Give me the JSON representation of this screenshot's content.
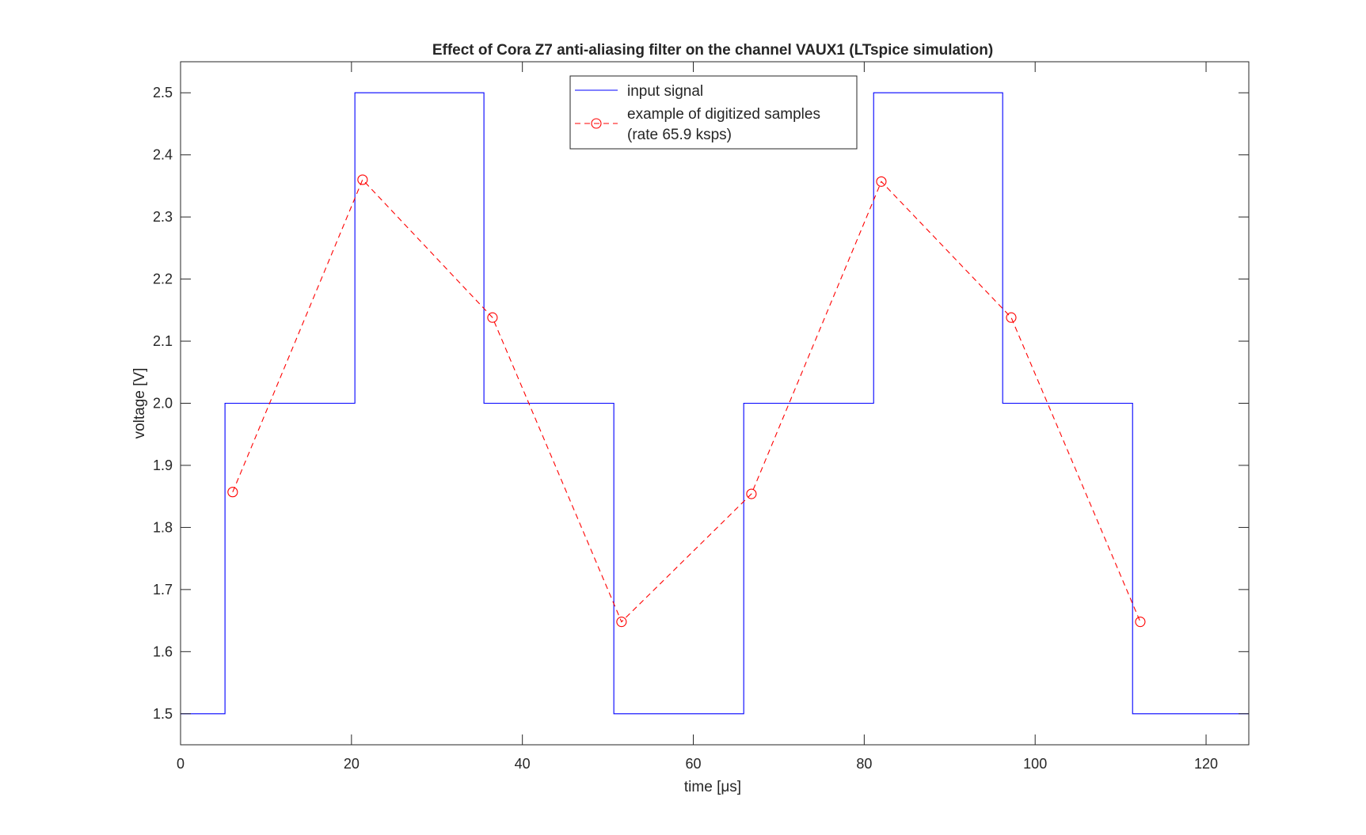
{
  "chart_data": {
    "type": "line",
    "title": "Effect of Cora Z7 anti-aliasing filter on the channel VAUX1 (LTspice simulation)",
    "xlabel": "time [μs]",
    "ylabel": "voltage [V]",
    "xlim": [
      0,
      125
    ],
    "ylim": [
      1.45,
      2.55
    ],
    "xticks": [
      0,
      20,
      40,
      60,
      80,
      100,
      120
    ],
    "xtick_labels": [
      "0",
      "20",
      "40",
      "60",
      "80",
      "100",
      "120"
    ],
    "yticks": [
      1.5,
      1.6,
      1.7,
      1.8,
      1.9,
      2.0,
      2.1,
      2.2,
      2.3,
      2.4,
      2.5
    ],
    "ytick_labels": [
      "1.5",
      "1.6",
      "1.7",
      "1.8",
      "1.9",
      "2.0",
      "2.1",
      "2.2",
      "2.3",
      "2.4",
      "2.5"
    ],
    "grid": false,
    "legend_position": "top-center",
    "series": [
      {
        "name": "input signal",
        "color": "#0000FF",
        "style": "solid",
        "marker": "none",
        "x": [
          0,
          5.2,
          5.2,
          20.4,
          20.4,
          35.5,
          35.5,
          50.7,
          50.7,
          65.9,
          65.9,
          81.1,
          81.1,
          96.2,
          96.2,
          111.4,
          111.4,
          125
        ],
        "y": [
          1.5,
          1.5,
          2.0,
          2.0,
          2.5,
          2.5,
          2.0,
          2.0,
          1.5,
          1.5,
          2.0,
          2.0,
          2.5,
          2.5,
          2.0,
          2.0,
          1.5,
          1.5
        ]
      },
      {
        "name": "example of digitized samples\n(rate 65.9 ksps)",
        "name_lines": [
          "example of digitized samples",
          "(rate 65.9 ksps)"
        ],
        "color": "#FF0000",
        "style": "dashed",
        "marker": "circle",
        "x": [
          6.1,
          21.3,
          36.5,
          51.6,
          66.8,
          82.0,
          97.2,
          112.3
        ],
        "y": [
          1.857,
          2.36,
          2.138,
          1.648,
          1.854,
          2.357,
          2.138,
          1.648
        ]
      }
    ]
  }
}
